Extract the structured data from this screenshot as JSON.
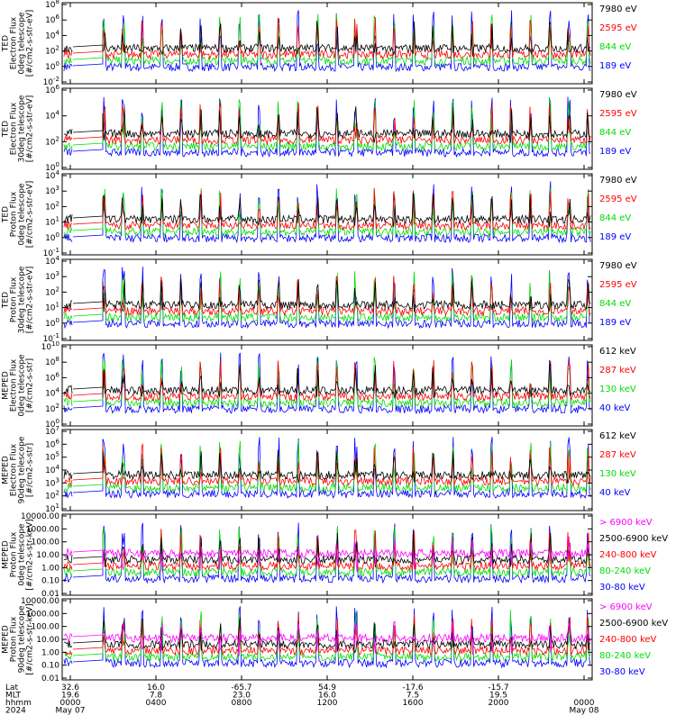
{
  "chart_data": [
    {
      "type": "line",
      "ylabel_lines": [
        "TED",
        "Electron Flux",
        "0deg telescope",
        "[#/cm2-s-str-eV]"
      ],
      "yticks": [
        "10^8",
        "10^6",
        "10^4",
        "10^2",
        "10^0",
        "10^-2"
      ],
      "series": [
        {
          "name": "7980 eV",
          "color": "#000000"
        },
        {
          "name": "2595 eV",
          "color": "#ff0000"
        },
        {
          "name": "844 eV",
          "color": "#00dd00"
        },
        {
          "name": "189 eV",
          "color": "#0000ff"
        }
      ]
    },
    {
      "type": "line",
      "ylabel_lines": [
        "TED",
        "Electron Flux",
        "30deg telescope",
        "[#/cm2-s-str-eV]"
      ],
      "yticks": [
        "10^6",
        "10^4",
        "10^2",
        "10^0"
      ],
      "series": [
        {
          "name": "7980 eV",
          "color": "#000000"
        },
        {
          "name": "2595 eV",
          "color": "#ff0000"
        },
        {
          "name": "844 eV",
          "color": "#00dd00"
        },
        {
          "name": "189 eV",
          "color": "#0000ff"
        }
      ]
    },
    {
      "type": "line",
      "ylabel_lines": [
        "TED",
        "Proton Flux",
        "0deg telescope",
        "[#/cm2-s-str-eV]"
      ],
      "yticks": [
        "10^4",
        "10^3",
        "10^2",
        "10^1",
        "10^0",
        "10^-1"
      ],
      "series": [
        {
          "name": "7980 eV",
          "color": "#000000"
        },
        {
          "name": "2595 eV",
          "color": "#ff0000"
        },
        {
          "name": "844 eV",
          "color": "#00dd00"
        },
        {
          "name": "189 eV",
          "color": "#0000ff"
        }
      ]
    },
    {
      "type": "line",
      "ylabel_lines": [
        "TED",
        "Proton Flux",
        "30deg telescope",
        "[#/cm2-s-str-eV]"
      ],
      "yticks": [
        "10^4",
        "10^3",
        "10^2",
        "10^1",
        "10^0",
        "10^-1"
      ],
      "series": [
        {
          "name": "7980 eV",
          "color": "#000000"
        },
        {
          "name": "2595 eV",
          "color": "#ff0000"
        },
        {
          "name": "844 eV",
          "color": "#00dd00"
        },
        {
          "name": "189 eV",
          "color": "#0000ff"
        }
      ]
    },
    {
      "type": "line",
      "ylabel_lines": [
        "MEPED",
        "Electron Flux",
        "0deg telescope",
        "[#/cm2-s-str]"
      ],
      "yticks": [
        "10^10",
        "10^8",
        "10^6",
        "10^4",
        "10^2",
        "10^0"
      ],
      "series": [
        {
          "name": "612 keV",
          "color": "#000000"
        },
        {
          "name": "287 keV",
          "color": "#ff0000"
        },
        {
          "name": "130 keV",
          "color": "#00dd00"
        },
        {
          "name": "40 keV",
          "color": "#0000ff"
        }
      ]
    },
    {
      "type": "line",
      "ylabel_lines": [
        "MEPED",
        "Electron Flux",
        "90deg telescope",
        "[#/cm2-s-str]"
      ],
      "yticks": [
        "10^7",
        "10^6",
        "10^5",
        "10^4",
        "10^3",
        "10^2",
        "10^1"
      ],
      "series": [
        {
          "name": "612 keV",
          "color": "#000000"
        },
        {
          "name": "287 keV",
          "color": "#ff0000"
        },
        {
          "name": "130 keV",
          "color": "#00dd00"
        },
        {
          "name": "40 keV",
          "color": "#0000ff"
        }
      ]
    },
    {
      "type": "line",
      "ylabel_lines": [
        "MEPED",
        "Proton Flux",
        "0deg telescope",
        "[#/cm2-s-str-keV]"
      ],
      "yticks": [
        "10000.00",
        "1000.00",
        "100.00",
        "10.00",
        "1.00",
        "0.10",
        "0.01"
      ],
      "series": [
        {
          "name": "> 6900 keV",
          "color": "#ff00ff"
        },
        {
          "name": "2500-6900 keV",
          "color": "#000000"
        },
        {
          "name": "240-800 keV",
          "color": "#ff0000"
        },
        {
          "name": "80-240 keV",
          "color": "#00dd00"
        },
        {
          "name": "30-80 keV",
          "color": "#0000ff"
        }
      ]
    },
    {
      "type": "line",
      "ylabel_lines": [
        "MEPED",
        "Proton Flux",
        "90deg telescope",
        "[#/cm2-s-str-keV]"
      ],
      "yticks": [
        "10000.00",
        "1000.00",
        "100.00",
        "10.00",
        "1.00",
        "0.10",
        "0.01"
      ],
      "series": [
        {
          "name": "> 6900 keV",
          "color": "#ff00ff"
        },
        {
          "name": "2500-6900 keV",
          "color": "#000000"
        },
        {
          "name": "240-800 keV",
          "color": "#ff0000"
        },
        {
          "name": "80-240 keV",
          "color": "#00dd00"
        },
        {
          "name": "30-80 keV",
          "color": "#0000ff"
        }
      ]
    }
  ],
  "xaxis": {
    "row_labels": [
      "Lat",
      "MLT",
      "hhmm",
      "2024"
    ],
    "ticks": [
      {
        "lat": "32.6",
        "mlt": "19.6",
        "hhmm": "0000",
        "date": "May 07"
      },
      {
        "lat": "16.0",
        "mlt": "7.8",
        "hhmm": "0400",
        "date": ""
      },
      {
        "lat": "-65.7",
        "mlt": "23.0",
        "hhmm": "0800",
        "date": ""
      },
      {
        "lat": "54.9",
        "mlt": "16.0",
        "hhmm": "1200",
        "date": ""
      },
      {
        "lat": "-17.6",
        "mlt": "7.5",
        "hhmm": "1600",
        "date": ""
      },
      {
        "lat": "-15.7",
        "mlt": "19.5",
        "hhmm": "2000",
        "date": ""
      },
      {
        "lat": "",
        "mlt": "",
        "hhmm": "0000",
        "date": "May 08"
      }
    ]
  }
}
